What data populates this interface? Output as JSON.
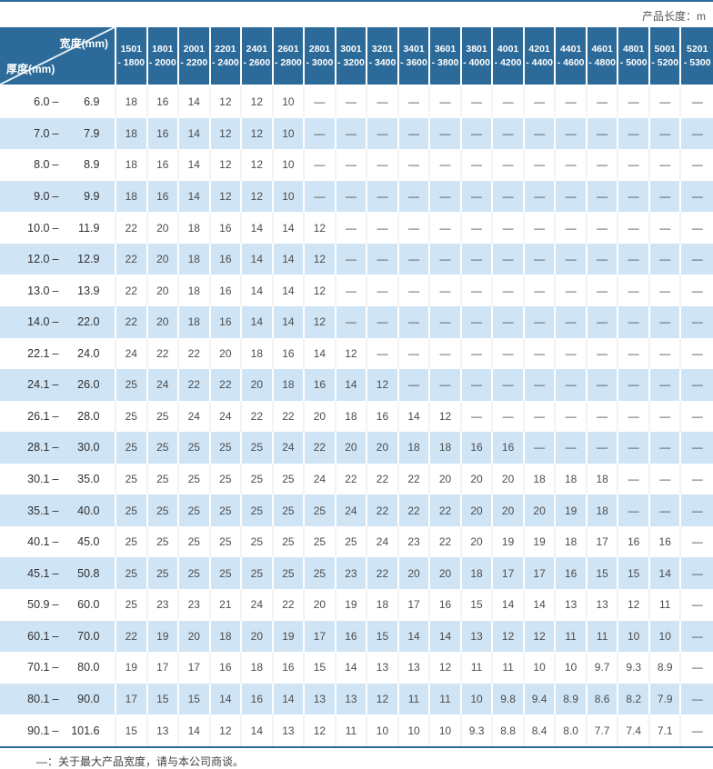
{
  "header": {
    "unit_label": "产品长度：m"
  },
  "footer": {
    "note": "—：关于最大产品宽度，请与本公司商谈。"
  },
  "colors": {
    "header_bg": "#2b6a99",
    "row_alt_bg": "#cfe4f5",
    "rule": "#2b6a99"
  },
  "chart_data": {
    "type": "table",
    "title": "",
    "unit_note": "产品长度：m",
    "col_header_axis": "宽度(mm)",
    "row_header_axis": "厚度(mm)",
    "range_separator": "–",
    "columns": [
      [
        "1501",
        "- 1800"
      ],
      [
        "1801",
        "- 2000"
      ],
      [
        "2001",
        "- 2200"
      ],
      [
        "2201",
        "- 2400"
      ],
      [
        "2401",
        "- 2600"
      ],
      [
        "2601",
        "- 2800"
      ],
      [
        "2801",
        "- 3000"
      ],
      [
        "3001",
        "- 3200"
      ],
      [
        "3201",
        "- 3400"
      ],
      [
        "3401",
        "- 3600"
      ],
      [
        "3601",
        "- 3800"
      ],
      [
        "3801",
        "- 4000"
      ],
      [
        "4001",
        "- 4200"
      ],
      [
        "4201",
        "- 4400"
      ],
      [
        "4401",
        "- 4600"
      ],
      [
        "4601",
        "- 4800"
      ],
      [
        "4801",
        "- 5000"
      ],
      [
        "5001",
        "- 5200"
      ],
      [
        "5201",
        "- 5300"
      ]
    ],
    "rows": [
      {
        "lo": "6.0",
        "hi": "6.9",
        "values": [
          "18",
          "16",
          "14",
          "12",
          "12",
          "10",
          "—",
          "—",
          "—",
          "—",
          "—",
          "—",
          "—",
          "—",
          "—",
          "—",
          "—",
          "—",
          "—"
        ]
      },
      {
        "lo": "7.0",
        "hi": "7.9",
        "values": [
          "18",
          "16",
          "14",
          "12",
          "12",
          "10",
          "—",
          "—",
          "—",
          "—",
          "—",
          "—",
          "—",
          "—",
          "—",
          "—",
          "—",
          "—",
          "—"
        ]
      },
      {
        "lo": "8.0",
        "hi": "8.9",
        "values": [
          "18",
          "16",
          "14",
          "12",
          "12",
          "10",
          "—",
          "—",
          "—",
          "—",
          "—",
          "—",
          "—",
          "—",
          "—",
          "—",
          "—",
          "—",
          "—"
        ]
      },
      {
        "lo": "9.0",
        "hi": "9.9",
        "values": [
          "18",
          "16",
          "14",
          "12",
          "12",
          "10",
          "—",
          "—",
          "—",
          "—",
          "—",
          "—",
          "—",
          "—",
          "—",
          "—",
          "—",
          "—",
          "—"
        ]
      },
      {
        "lo": "10.0",
        "hi": "11.9",
        "values": [
          "22",
          "20",
          "18",
          "16",
          "14",
          "14",
          "12",
          "—",
          "—",
          "—",
          "—",
          "—",
          "—",
          "—",
          "—",
          "—",
          "—",
          "—",
          "—"
        ]
      },
      {
        "lo": "12.0",
        "hi": "12.9",
        "values": [
          "22",
          "20",
          "18",
          "16",
          "14",
          "14",
          "12",
          "—",
          "—",
          "—",
          "—",
          "—",
          "—",
          "—",
          "—",
          "—",
          "—",
          "—",
          "—"
        ]
      },
      {
        "lo": "13.0",
        "hi": "13.9",
        "values": [
          "22",
          "20",
          "18",
          "16",
          "14",
          "14",
          "12",
          "—",
          "—",
          "—",
          "—",
          "—",
          "—",
          "—",
          "—",
          "—",
          "—",
          "—",
          "—"
        ]
      },
      {
        "lo": "14.0",
        "hi": "22.0",
        "values": [
          "22",
          "20",
          "18",
          "16",
          "14",
          "14",
          "12",
          "—",
          "—",
          "—",
          "—",
          "—",
          "—",
          "—",
          "—",
          "—",
          "—",
          "—",
          "—"
        ]
      },
      {
        "lo": "22.1",
        "hi": "24.0",
        "values": [
          "24",
          "22",
          "22",
          "20",
          "18",
          "16",
          "14",
          "12",
          "—",
          "—",
          "—",
          "—",
          "—",
          "—",
          "—",
          "—",
          "—",
          "—",
          "—"
        ]
      },
      {
        "lo": "24.1",
        "hi": "26.0",
        "values": [
          "25",
          "24",
          "22",
          "22",
          "20",
          "18",
          "16",
          "14",
          "12",
          "—",
          "—",
          "—",
          "—",
          "—",
          "—",
          "—",
          "—",
          "—",
          "—"
        ]
      },
      {
        "lo": "26.1",
        "hi": "28.0",
        "values": [
          "25",
          "25",
          "24",
          "24",
          "22",
          "22",
          "20",
          "18",
          "16",
          "14",
          "12",
          "—",
          "—",
          "—",
          "—",
          "—",
          "—",
          "—",
          "—"
        ]
      },
      {
        "lo": "28.1",
        "hi": "30.0",
        "values": [
          "25",
          "25",
          "25",
          "25",
          "25",
          "24",
          "22",
          "20",
          "20",
          "18",
          "18",
          "16",
          "16",
          "—",
          "—",
          "—",
          "—",
          "—",
          "—"
        ]
      },
      {
        "lo": "30.1",
        "hi": "35.0",
        "values": [
          "25",
          "25",
          "25",
          "25",
          "25",
          "25",
          "24",
          "22",
          "22",
          "22",
          "20",
          "20",
          "20",
          "18",
          "18",
          "18",
          "—",
          "—",
          "—"
        ]
      },
      {
        "lo": "35.1",
        "hi": "40.0",
        "values": [
          "25",
          "25",
          "25",
          "25",
          "25",
          "25",
          "25",
          "24",
          "22",
          "22",
          "22",
          "20",
          "20",
          "20",
          "19",
          "18",
          "—",
          "—",
          "—"
        ]
      },
      {
        "lo": "40.1",
        "hi": "45.0",
        "values": [
          "25",
          "25",
          "25",
          "25",
          "25",
          "25",
          "25",
          "25",
          "24",
          "23",
          "22",
          "20",
          "19",
          "19",
          "18",
          "17",
          "16",
          "16",
          "—"
        ]
      },
      {
        "lo": "45.1",
        "hi": "50.8",
        "values": [
          "25",
          "25",
          "25",
          "25",
          "25",
          "25",
          "25",
          "23",
          "22",
          "20",
          "20",
          "18",
          "17",
          "17",
          "16",
          "15",
          "15",
          "14",
          "—"
        ]
      },
      {
        "lo": "50.9",
        "hi": "60.0",
        "values": [
          "25",
          "23",
          "23",
          "21",
          "24",
          "22",
          "20",
          "19",
          "18",
          "17",
          "16",
          "15",
          "14",
          "14",
          "13",
          "13",
          "12",
          "11",
          "—"
        ]
      },
      {
        "lo": "60.1",
        "hi": "70.0",
        "values": [
          "22",
          "19",
          "20",
          "18",
          "20",
          "19",
          "17",
          "16",
          "15",
          "14",
          "14",
          "13",
          "12",
          "12",
          "11",
          "11",
          "10",
          "10",
          "—"
        ]
      },
      {
        "lo": "70.1",
        "hi": "80.0",
        "values": [
          "19",
          "17",
          "17",
          "16",
          "18",
          "16",
          "15",
          "14",
          "13",
          "13",
          "12",
          "11",
          "11",
          "10",
          "10",
          "9.7",
          "9.3",
          "8.9",
          "—"
        ]
      },
      {
        "lo": "80.1",
        "hi": "90.0",
        "values": [
          "17",
          "15",
          "15",
          "14",
          "16",
          "14",
          "13",
          "13",
          "12",
          "11",
          "11",
          "10",
          "9.8",
          "9.4",
          "8.9",
          "8.6",
          "8.2",
          "7.9",
          "—"
        ]
      },
      {
        "lo": "90.1",
        "hi": "101.6",
        "values": [
          "15",
          "13",
          "14",
          "12",
          "14",
          "13",
          "12",
          "11",
          "10",
          "10",
          "10",
          "9.3",
          "8.8",
          "8.4",
          "8.0",
          "7.7",
          "7.4",
          "7.1",
          "—"
        ]
      }
    ]
  }
}
